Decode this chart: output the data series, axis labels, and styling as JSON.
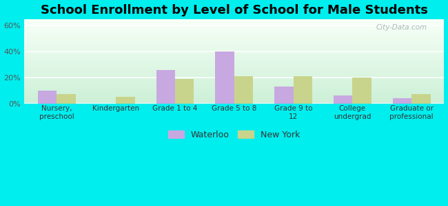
{
  "title": "School Enrollment by Level of School for Male Students",
  "categories": [
    "Nursery,\npreschool",
    "Kindergarten",
    "Grade 1 to 4",
    "Grade 5 to 8",
    "Grade 9 to\n12",
    "College\nundergrad",
    "Graduate or\nprofessional"
  ],
  "waterloo": [
    10,
    0,
    26,
    40,
    13,
    6,
    4
  ],
  "new_york": [
    7,
    5,
    19,
    21,
    21,
    20,
    7
  ],
  "waterloo_color": "#c8a8e0",
  "new_york_color": "#c8d48c",
  "background_color": "#00eeee",
  "ylabel_ticks": [
    "0%",
    "20%",
    "40%",
    "60%"
  ],
  "yticks": [
    0,
    20,
    40,
    60
  ],
  "ylim": [
    0,
    65
  ],
  "title_fontsize": 13,
  "legend_labels": [
    "Waterloo",
    "New York"
  ],
  "bar_width": 0.32,
  "grad_top": "#f8fff8",
  "grad_bottom": "#d0f0d8"
}
